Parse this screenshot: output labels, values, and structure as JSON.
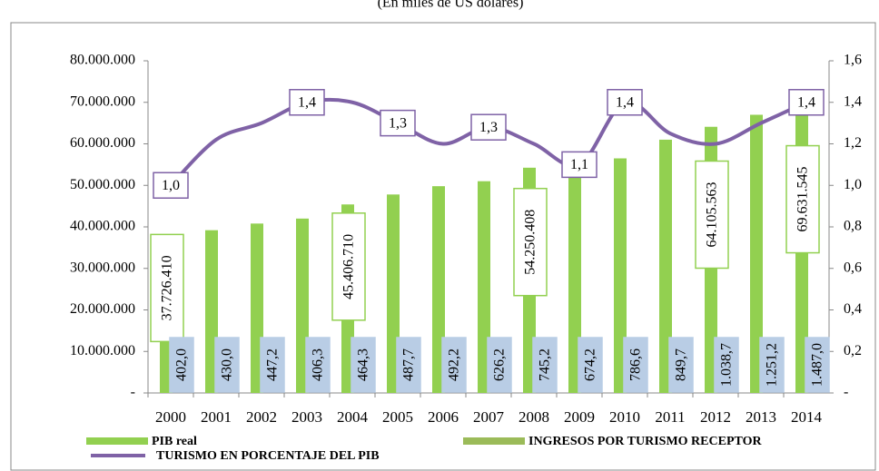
{
  "chart_data": {
    "type": "bar",
    "subtitle": "(En miles de US dólares)",
    "categories": [
      "2000",
      "2001",
      "2002",
      "2003",
      "2004",
      "2005",
      "2006",
      "2007",
      "2008",
      "2009",
      "2010",
      "2011",
      "2012",
      "2013",
      "2014"
    ],
    "series": [
      {
        "name": "PIB real",
        "color": "#92d050",
        "values": [
          37726410,
          39200000,
          40800000,
          42000000,
          45406710,
          47800000,
          49800000,
          51000000,
          54250408,
          52500000,
          56500000,
          61000000,
          64105563,
          67000000,
          69631545
        ],
        "value_labels": [
          "37.726.410",
          null,
          null,
          null,
          "45.406.710",
          null,
          null,
          null,
          "54.250.408",
          null,
          null,
          null,
          "64.105.563",
          null,
          "69.631.545"
        ]
      },
      {
        "name": "INGRESOS POR TURISMO RECEPTOR",
        "color": "#9bbb59",
        "values": [
          402.0,
          430.0,
          447.2,
          406.3,
          464.3,
          487.7,
          492.2,
          626.2,
          745.2,
          674.2,
          786.6,
          849.7,
          1038.7,
          1251.2,
          1487.0
        ],
        "value_labels": [
          "402,0",
          "430,0",
          "447,2",
          "406,3",
          "464,3",
          "487,7",
          "492,2",
          "626,2",
          "745,2",
          "674,2",
          "786,6",
          "849,7",
          "1.038,7",
          "1.251,2",
          "1.487,0"
        ]
      },
      {
        "name": "TURISMO EN PORCENTAJE DEL PIB",
        "color": "#7f62a6",
        "type": "line",
        "axis": "y2",
        "values": [
          1.0,
          1.22,
          1.3,
          1.4,
          1.4,
          1.3,
          1.2,
          1.28,
          1.2,
          1.1,
          1.4,
          1.25,
          1.2,
          1.3,
          1.4
        ],
        "value_labels": [
          "1,0",
          null,
          null,
          "1,4",
          null,
          "1,3",
          null,
          "1,3",
          null,
          "1,1",
          "1,4",
          null,
          null,
          null,
          "1,4"
        ]
      }
    ],
    "ylim": [
      0,
      80000000
    ],
    "yticks": [
      {
        "value": 0,
        "label": "-"
      },
      {
        "value": 10000000,
        "label": "10.000.000"
      },
      {
        "value": 20000000,
        "label": "20.000.000"
      },
      {
        "value": 30000000,
        "label": "30.000.000"
      },
      {
        "value": 40000000,
        "label": "40.000.000"
      },
      {
        "value": 50000000,
        "label": "50.000.000"
      },
      {
        "value": 60000000,
        "label": "60.000.000"
      },
      {
        "value": 70000000,
        "label": "70.000.000"
      },
      {
        "value": 80000000,
        "label": "80.000.000"
      }
    ],
    "y2lim": [
      0,
      1.6
    ],
    "y2ticks": [
      {
        "value": 0,
        "label": "-"
      },
      {
        "value": 0.2,
        "label": "0,2"
      },
      {
        "value": 0.4,
        "label": "0,4"
      },
      {
        "value": 0.6,
        "label": "0,6"
      },
      {
        "value": 0.8,
        "label": "0,8"
      },
      {
        "value": 1.0,
        "label": "1,0"
      },
      {
        "value": 1.2,
        "label": "1,2"
      },
      {
        "value": 1.4,
        "label": "1,4"
      },
      {
        "value": 1.6,
        "label": "1,6"
      }
    ],
    "legend": "bottom"
  }
}
